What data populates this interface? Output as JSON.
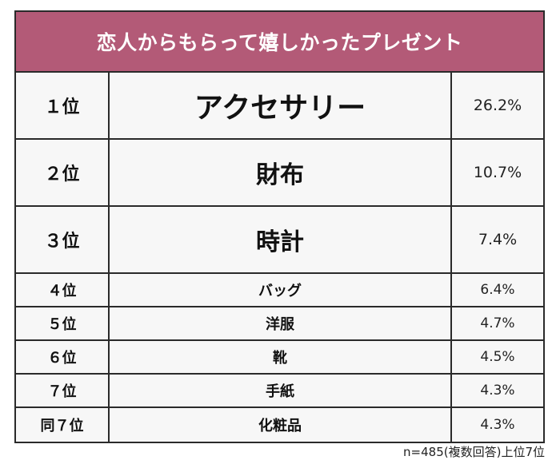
{
  "title": "恋人からもらって嬉しかったプレゼント",
  "rows": [
    {
      "rank": "１位",
      "item": "アクセサリー",
      "percent": "26.2%"
    },
    {
      "rank": "２位",
      "item": "財布",
      "percent": "10.7%"
    },
    {
      "rank": "３位",
      "item": "時計",
      "percent": "7.4%"
    },
    {
      "rank": "４位",
      "item": "バッグ",
      "percent": "6.4%"
    },
    {
      "rank": "５位",
      "item": "洋服",
      "percent": "4.7%"
    },
    {
      "rank": "６位",
      "item": "靴",
      "percent": "4.5%"
    },
    {
      "rank": "７位",
      "item": "手紙",
      "percent": "4.3%"
    },
    {
      "rank": "同７位",
      "item": "化粧品",
      "percent": "4.3%"
    }
  ],
  "footnote": "n=485(複数回答)上位7位",
  "colors": {
    "header_bg": "#b35a77",
    "cell_bg": "#f7f7f7",
    "border": "#2a2a2a"
  }
}
